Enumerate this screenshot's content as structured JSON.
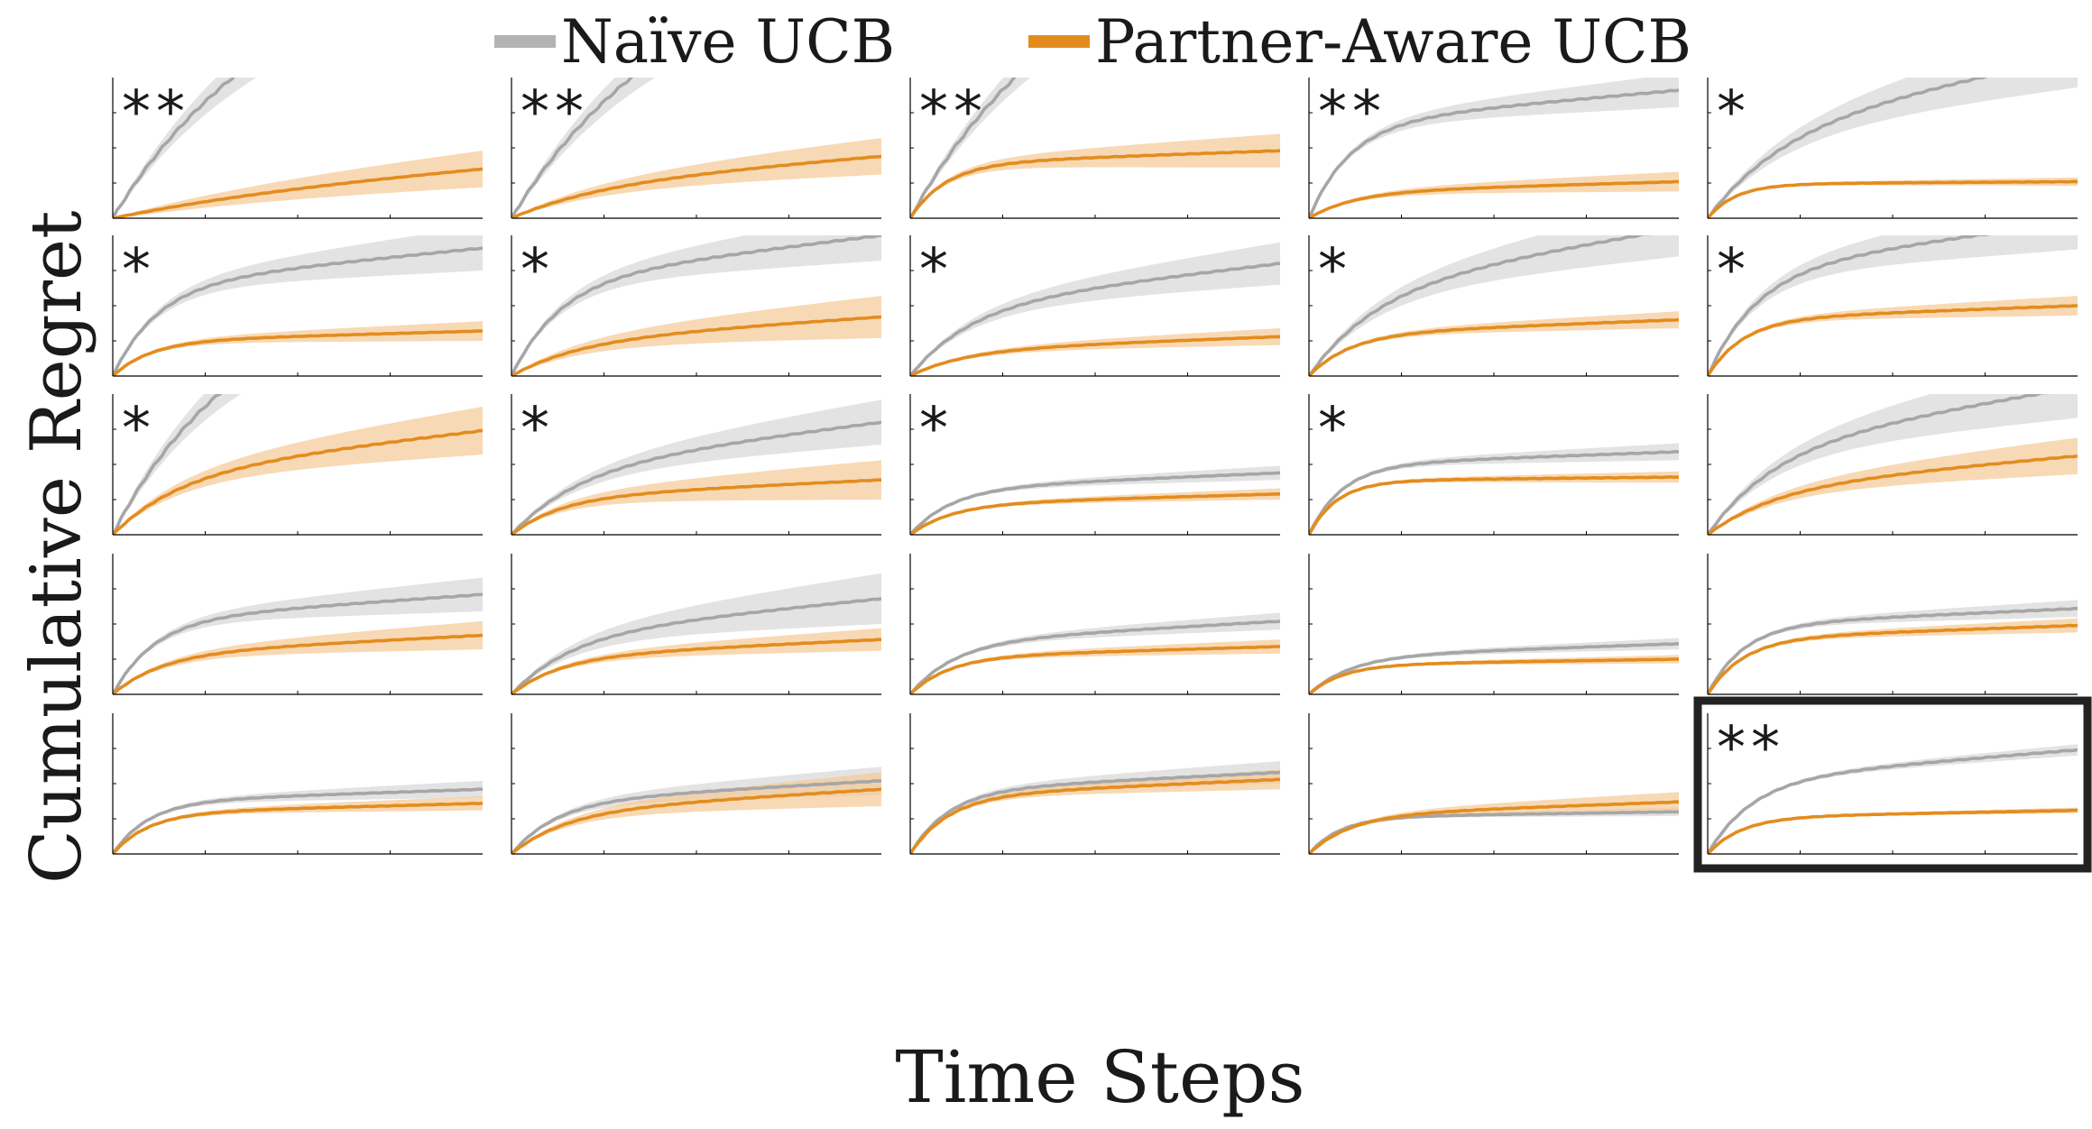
{
  "legend": [
    {
      "label": "Naïve UCB",
      "color": "#b3b3b3"
    },
    {
      "label": "Partner-Aware UCB",
      "color": "#e38c1e"
    }
  ],
  "ylabel": "Cumulative Regret",
  "xlabel": "Time Steps",
  "colors": {
    "naive_line": "#a6a6a6",
    "naive_band": "#d9d9d9",
    "aware_line": "#e38c1e",
    "aware_band": "#f5c995",
    "axis": "#000000",
    "highlight_frame": "#222222"
  },
  "chart_data": {
    "type": "line",
    "grid": false,
    "layout": "5x5 small multiples",
    "series_names": [
      "Naïve UCB",
      "Partner-Aware UCB"
    ],
    "panels": [
      {
        "mark": "**",
        "naive": {
          "end": 2.0,
          "shape": 0.2,
          "band": 0.28
        },
        "aware": {
          "end": 0.35,
          "shape": 0.1,
          "band": 0.13
        }
      },
      {
        "mark": "**",
        "naive": {
          "end": 2.0,
          "shape": 0.2,
          "band": 0.28
        },
        "aware": {
          "end": 0.44,
          "shape": 0.25,
          "band": 0.13
        }
      },
      {
        "mark": "**",
        "naive": {
          "end": 2.2,
          "shape": 0.2,
          "band": 0.25
        },
        "aware": {
          "end": 0.48,
          "shape": 0.7,
          "band": 0.12
        }
      },
      {
        "mark": "**",
        "naive": {
          "end": 0.91,
          "shape": 0.6,
          "band": 0.12
        },
        "aware": {
          "end": 0.26,
          "shape": 0.55,
          "band": 0.07
        }
      },
      {
        "mark": "*",
        "naive": {
          "end": 1.15,
          "shape": 0.3,
          "band": 0.22
        },
        "aware": {
          "end": 0.26,
          "shape": 0.9,
          "band": 0.03
        }
      },
      {
        "mark": "*",
        "naive": {
          "end": 0.91,
          "shape": 0.55,
          "band": 0.16
        },
        "aware": {
          "end": 0.32,
          "shape": 0.65,
          "band": 0.07
        }
      },
      {
        "mark": "*",
        "naive": {
          "end": 1.0,
          "shape": 0.5,
          "band": 0.18
        },
        "aware": {
          "end": 0.42,
          "shape": 0.35,
          "band": 0.15
        }
      },
      {
        "mark": "*",
        "naive": {
          "end": 0.8,
          "shape": 0.4,
          "band": 0.15
        },
        "aware": {
          "end": 0.28,
          "shape": 0.45,
          "band": 0.06
        }
      },
      {
        "mark": "*",
        "naive": {
          "end": 1.05,
          "shape": 0.35,
          "band": 0.2
        },
        "aware": {
          "end": 0.4,
          "shape": 0.6,
          "band": 0.06
        }
      },
      {
        "mark": "*",
        "naive": {
          "end": 1.1,
          "shape": 0.5,
          "band": 0.2
        },
        "aware": {
          "end": 0.5,
          "shape": 0.7,
          "band": 0.07
        }
      },
      {
        "mark": "*",
        "naive": {
          "end": 2.0,
          "shape": 0.25,
          "band": 0.3
        },
        "aware": {
          "end": 0.74,
          "shape": 0.35,
          "band": 0.17
        }
      },
      {
        "mark": "*",
        "naive": {
          "end": 0.8,
          "shape": 0.35,
          "band": 0.16
        },
        "aware": {
          "end": 0.39,
          "shape": 0.5,
          "band": 0.14
        }
      },
      {
        "mark": "*",
        "naive": {
          "end": 0.44,
          "shape": 0.6,
          "band": 0.05
        },
        "aware": {
          "end": 0.29,
          "shape": 0.6,
          "band": 0.04
        }
      },
      {
        "mark": "*",
        "naive": {
          "end": 0.59,
          "shape": 0.75,
          "band": 0.06
        },
        "aware": {
          "end": 0.41,
          "shape": 0.9,
          "band": 0.04
        }
      },
      {
        "mark": "",
        "naive": {
          "end": 1.05,
          "shape": 0.35,
          "band": 0.22
        },
        "aware": {
          "end": 0.56,
          "shape": 0.35,
          "band": 0.13
        }
      },
      {
        "mark": "",
        "naive": {
          "end": 0.71,
          "shape": 0.6,
          "band": 0.12
        },
        "aware": {
          "end": 0.42,
          "shape": 0.5,
          "band": 0.1
        }
      },
      {
        "mark": "",
        "naive": {
          "end": 0.68,
          "shape": 0.4,
          "band": 0.18
        },
        "aware": {
          "end": 0.39,
          "shape": 0.5,
          "band": 0.08
        }
      },
      {
        "mark": "",
        "naive": {
          "end": 0.52,
          "shape": 0.55,
          "band": 0.06
        },
        "aware": {
          "end": 0.34,
          "shape": 0.65,
          "band": 0.05
        }
      },
      {
        "mark": "",
        "naive": {
          "end": 0.36,
          "shape": 0.6,
          "band": 0.04
        },
        "aware": {
          "end": 0.25,
          "shape": 0.75,
          "band": 0.03
        }
      },
      {
        "mark": "",
        "naive": {
          "end": 0.61,
          "shape": 0.7,
          "band": 0.06
        },
        "aware": {
          "end": 0.49,
          "shape": 0.7,
          "band": 0.05
        }
      },
      {
        "mark": "",
        "naive": {
          "end": 0.46,
          "shape": 0.7,
          "band": 0.06
        },
        "aware": {
          "end": 0.36,
          "shape": 0.7,
          "band": 0.05
        }
      },
      {
        "mark": "",
        "naive": {
          "end": 0.52,
          "shape": 0.55,
          "band": 0.1
        },
        "aware": {
          "end": 0.46,
          "shape": 0.45,
          "band": 0.12
        }
      },
      {
        "mark": "",
        "naive": {
          "end": 0.58,
          "shape": 0.65,
          "band": 0.08
        },
        "aware": {
          "end": 0.53,
          "shape": 0.65,
          "band": 0.07
        }
      },
      {
        "mark": "",
        "naive": {
          "end": 0.3,
          "shape": 0.8,
          "band": 0.03
        },
        "aware": {
          "end": 0.37,
          "shape": 0.6,
          "band": 0.07
        }
      },
      {
        "mark": "**",
        "highlighted": true,
        "naive": {
          "end": 0.74,
          "shape": 0.55,
          "band": 0.04
        },
        "aware": {
          "end": 0.31,
          "shape": 0.75,
          "band": 0.02
        }
      }
    ]
  }
}
